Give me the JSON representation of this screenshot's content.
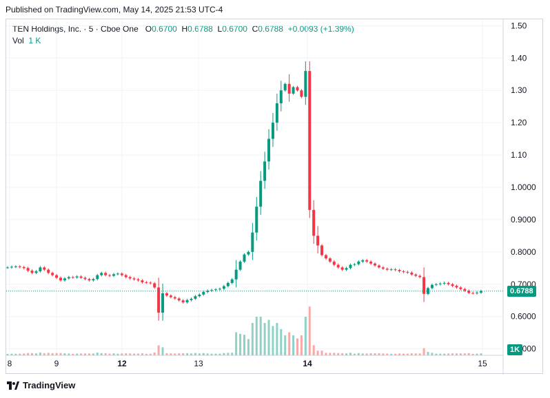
{
  "header": {
    "published": "Published on TradingView.com, May 14, 2025 21:53 UTC-4"
  },
  "legend": {
    "symbol": "TEN Holdings, Inc. · 5 · Cboe One",
    "o_label": "O",
    "o_value": "0.6700",
    "h_label": "H",
    "h_value": "0.6788",
    "l_label": "L",
    "l_value": "0.6700",
    "c_label": "C",
    "c_value": "0.6788",
    "change": "+0.0093 (+1.39%)",
    "vol_label": "Vol",
    "vol_value": "1 K"
  },
  "colors": {
    "up": "#089981",
    "down": "#f23645",
    "up_volume": "#8fd0c7",
    "down_volume": "#f7a9a7",
    "grid": "#f0f3fa",
    "axis_text": "#131722"
  },
  "footer": {
    "brand": "TradingView",
    "logo": "tradingview-logo-icon"
  },
  "chart_data": {
    "type": "candlestick",
    "title": "TEN Holdings, Inc. · 5 · Cboe One",
    "y_axis": {
      "ticks": [
        "1.50",
        "1.40",
        "1.30",
        "1.20",
        "1.10",
        "1.0000",
        "0.9000",
        "0.8000",
        "0.7000",
        "0.6000",
        "0.5000"
      ],
      "range": [
        0.48,
        1.52
      ]
    },
    "x_axis": {
      "ticks": [
        "8",
        "9",
        "12",
        "13",
        "14",
        "15"
      ],
      "bold_ticks": [
        "12",
        "14"
      ]
    },
    "last_price": "0.6788",
    "last_volume": "1K",
    "grid": true,
    "segments": [
      {
        "day": "8-9",
        "from": 0.75,
        "to": 0.74,
        "points": [
          0.752,
          0.754,
          0.755,
          0.753,
          0.75,
          0.742,
          0.735,
          0.74,
          0.752,
          0.745,
          0.735,
          0.728,
          0.72,
          0.712,
          0.718,
          0.722,
          0.721,
          0.724,
          0.72,
          0.716,
          0.712,
          0.716,
          0.728,
          0.735,
          0.728,
          0.726,
          0.731,
          0.733,
          0.728,
          0.722,
          0.718,
          0.715,
          0.712,
          0.706,
          0.705,
          0.703,
          0.69,
          0.612,
          0.672,
          0.665,
          0.66,
          0.656,
          0.65,
          0.644,
          0.651,
          0.655,
          0.663,
          0.668,
          0.676,
          0.68,
          0.682,
          0.684,
          0.686,
          0.694,
          0.704,
          0.715,
          0.745,
          0.77,
          0.792,
          0.8,
          0.86,
          0.94,
          1.02,
          1.08,
          1.15,
          1.2,
          1.26,
          1.3,
          1.32,
          1.29,
          1.31,
          1.3,
          1.28,
          1.36,
          0.93,
          0.85,
          0.82,
          0.79,
          0.78,
          0.77,
          0.76,
          0.752,
          0.745,
          0.75,
          0.76,
          0.762,
          0.77,
          0.774,
          0.77,
          0.764,
          0.758,
          0.752,
          0.748,
          0.745,
          0.746,
          0.744,
          0.74,
          0.738,
          0.736,
          0.73,
          0.726,
          0.722,
          0.67,
          0.688,
          0.698,
          0.7,
          0.702,
          0.704,
          0.7,
          0.695,
          0.69,
          0.685,
          0.68,
          0.673,
          0.672,
          0.674,
          0.679
        ]
      }
    ],
    "volume_peak_note": "volume spikes during the 13–14 rally"
  }
}
